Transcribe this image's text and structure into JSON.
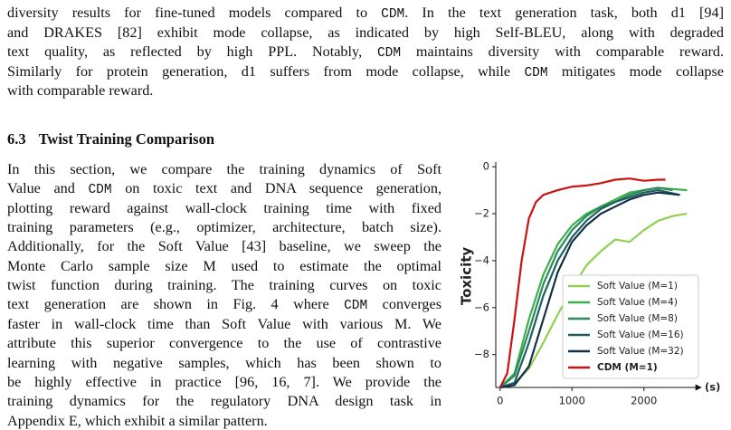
{
  "intro_lines": [
    [
      "diversity results for fine-tuned models compared to ",
      "CDM",
      ". In the text generation task, both d1 [94]"
    ],
    [
      "and DRAKES [82] exhibit mode collapse, as indicated by high Self-BLEU, along with degraded"
    ],
    [
      "text quality, as reflected by high PPL. Notably, ",
      "CDM",
      " maintains diversity with comparable reward."
    ],
    [
      "Similarly for protein generation, d1 suffers from mode collapse, while ",
      "CDM",
      " mitigates mode collapse"
    ],
    [
      "with comparable reward."
    ]
  ],
  "section": {
    "number": "6.3",
    "title": "Twist Training Comparison"
  },
  "section_lines": [
    [
      "In this section, we compare the training dynamics of Soft"
    ],
    [
      "Value and ",
      "CDM",
      " on toxic text and DNA sequence generation,"
    ],
    [
      "plotting reward against wall-clock training time with fixed"
    ],
    [
      "training parameters (e.g., optimizer, architecture, batch size)."
    ],
    [
      "Additionally, for the Soft Value [43] baseline, we sweep the"
    ],
    [
      "Monte Carlo sample size M used to estimate the optimal"
    ],
    [
      "twist function during training. The training curves on toxic"
    ],
    [
      "text generation are shown in Fig. 4 where ",
      "CDM",
      " converges"
    ],
    [
      "faster in wall-clock time than Soft Value with various M. We"
    ],
    [
      "attribute this superior convergence to the use of contrastive"
    ],
    [
      "learning with negative samples, which has been shown to"
    ],
    [
      "be highly effective in practice [96, 16, 7]. We provide the"
    ],
    [
      "training dynamics for the regulatory DNA design task in"
    ],
    [
      "Appendix E, which exhibit a similar pattern."
    ]
  ],
  "chart_data": {
    "type": "line",
    "x_label": "(s)",
    "y_label": "Toxicity",
    "xlim": [
      -60,
      2670
    ],
    "ylim": [
      -9.4,
      0.2
    ],
    "xticks": [
      0,
      1000,
      2000
    ],
    "yticks": [
      {
        "value": 0,
        "label": "0"
      },
      {
        "value": -2,
        "label": "−2"
      },
      {
        "value": -4,
        "label": "−4"
      },
      {
        "value": -6,
        "label": "−6"
      },
      {
        "value": -8,
        "label": "−8"
      }
    ],
    "legend": "lower right",
    "series": [
      {
        "name": "Soft Value (M=1)",
        "color": "#8fd14f",
        "x": [
          0,
          200,
          400,
          600,
          800,
          1000,
          1200,
          1400,
          1600,
          1800,
          2000,
          2200,
          2400,
          2600
        ],
        "values": [
          -9.4,
          -9.2,
          -8.6,
          -7.5,
          -6.3,
          -5.2,
          -4.2,
          -3.6,
          -3.1,
          -3.2,
          -2.7,
          -2.3,
          -2.1,
          -2.0
        ]
      },
      {
        "name": "Soft Value (M=4)",
        "color": "#3cb04a",
        "x": [
          0,
          200,
          400,
          600,
          800,
          1000,
          1200,
          1400,
          1600,
          1800,
          2000,
          2200,
          2400,
          2600
        ],
        "values": [
          -9.4,
          -8.8,
          -6.5,
          -4.6,
          -3.3,
          -2.5,
          -2.0,
          -1.7,
          -1.4,
          -1.1,
          -1.0,
          -0.9,
          -0.95,
          -1.0
        ]
      },
      {
        "name": "Soft Value (M=8)",
        "color": "#2a8a5e",
        "x": [
          0,
          200,
          400,
          600,
          800,
          1000,
          1200,
          1400,
          1600,
          1800,
          2000,
          2200,
          2400
        ],
        "values": [
          -9.4,
          -8.9,
          -7.0,
          -5.0,
          -3.6,
          -2.7,
          -2.1,
          -1.7,
          -1.5,
          -1.2,
          -1.0,
          -0.9,
          -1.0
        ]
      },
      {
        "name": "Soft Value (M=16)",
        "color": "#1f5f5b",
        "x": [
          0,
          200,
          400,
          600,
          800,
          1000,
          1200,
          1400,
          1600,
          1800,
          2000,
          2200,
          2500
        ],
        "values": [
          -9.4,
          -9.2,
          -7.5,
          -5.5,
          -4.0,
          -3.0,
          -2.3,
          -1.8,
          -1.5,
          -1.3,
          -1.1,
          -1.0,
          -1.2
        ]
      },
      {
        "name": "Soft Value (M=32)",
        "color": "#12304a",
        "x": [
          0,
          200,
          400,
          600,
          800,
          1000,
          1200,
          1400,
          1600,
          1800,
          2000,
          2200,
          2500
        ],
        "values": [
          -9.4,
          -9.3,
          -8.5,
          -6.5,
          -4.5,
          -3.2,
          -2.5,
          -2.0,
          -1.7,
          -1.4,
          -1.2,
          -1.1,
          -1.2
        ]
      },
      {
        "name": "CDM (M=1)",
        "color": "#cc1111",
        "x": [
          0,
          100,
          200,
          300,
          400,
          500,
          600,
          800,
          1000,
          1200,
          1400,
          1600,
          1800,
          2000,
          2200,
          2300
        ],
        "values": [
          -9.4,
          -8.8,
          -6.5,
          -4.0,
          -2.2,
          -1.5,
          -1.2,
          -1.0,
          -0.85,
          -0.8,
          -0.7,
          -0.55,
          -0.5,
          -0.6,
          -0.55,
          -0.55
        ]
      }
    ]
  }
}
